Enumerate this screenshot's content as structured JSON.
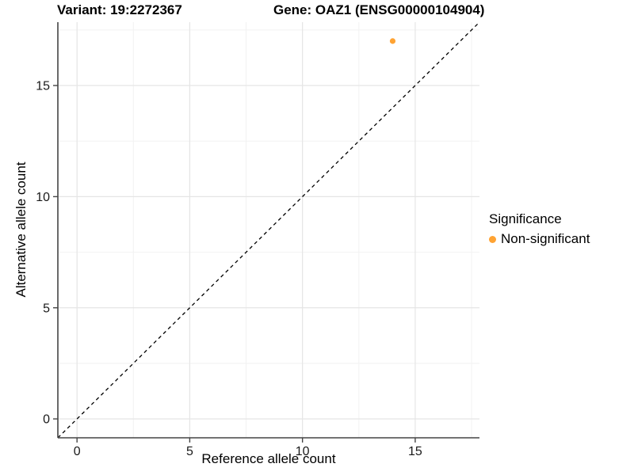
{
  "titles": {
    "left": "Variant: 19:2272367",
    "right": "Gene: OAZ1 (ENSG00000104904)"
  },
  "legend": {
    "title": "Significance",
    "position": "right",
    "items": [
      {
        "label": "Non-significant",
        "color": "#FFA333"
      }
    ]
  },
  "chart_data": {
    "type": "scatter",
    "title": "Variant: 19:2272367 — Gene: OAZ1 (ENSG00000104904)",
    "xlabel": "Reference allele count",
    "ylabel": "Alternative allele count",
    "xlim": [
      -0.85,
      17.85
    ],
    "ylim": [
      -0.85,
      17.85
    ],
    "x_major_ticks": [
      0,
      5,
      10,
      15
    ],
    "y_major_ticks": [
      0,
      5,
      10,
      15
    ],
    "x_minor_gridlines": [
      2.5,
      7.5,
      12.5,
      17.5
    ],
    "y_minor_gridlines": [
      2.5,
      7.5,
      12.5,
      17.5
    ],
    "grid": "major and minor, light gray on white",
    "identity_line": {
      "type": "y=x",
      "style": "dashed",
      "color": "#000000"
    },
    "series": [
      {
        "name": "Non-significant",
        "color": "#FFA333",
        "points": [
          {
            "x": 14,
            "y": 17
          }
        ]
      }
    ],
    "colors": {
      "major_grid": "#E5E5E5",
      "minor_grid": "#F2F2F2",
      "axis_line": "#454545",
      "tick_mark": "#454545",
      "tick_text": "#1a1a1a"
    }
  }
}
